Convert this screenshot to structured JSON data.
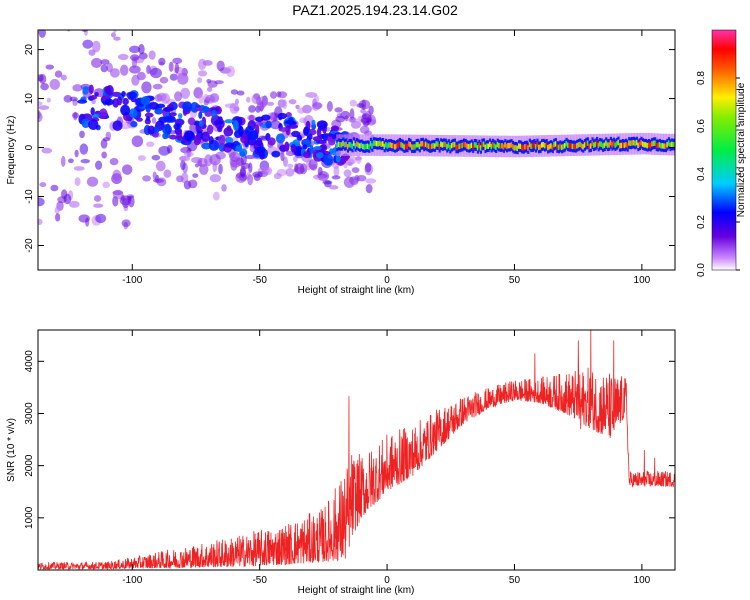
{
  "title": "PAZ1.2025.194.23.14.G02",
  "chart_data": [
    {
      "type": "heatmap",
      "title": "",
      "xlabel": "Height of straight line (km)",
      "ylabel": "Frequency (Hz)",
      "xlim": [
        -137,
        113
      ],
      "ylim": [
        -25,
        24
      ],
      "xticks": [
        -100,
        -50,
        0,
        50,
        100
      ],
      "yticks": [
        -20,
        -10,
        0,
        10,
        20
      ],
      "colorbar": {
        "label": "Normalized spectral amplitude",
        "range": [
          0,
          1
        ],
        "ticks": [
          "0.0",
          "0.2",
          "0.4",
          "0.6",
          "0.8"
        ],
        "colormap": "rainbow (white-violet-blue-cyan-green-yellow-red-magenta)"
      },
      "ridge_frequency_hz": [
        {
          "x": -130,
          "f": 8
        },
        {
          "x": -110,
          "f": 8
        },
        {
          "x": -100,
          "f": 7
        },
        {
          "x": -90,
          "f": 6
        },
        {
          "x": -80,
          "f": 5
        },
        {
          "x": -70,
          "f": 4
        },
        {
          "x": -60,
          "f": 3
        },
        {
          "x": -50,
          "f": 2
        },
        {
          "x": -40,
          "f": 3
        },
        {
          "x": -30,
          "f": 2
        },
        {
          "x": -20,
          "f": 0.5
        },
        {
          "x": 0,
          "f": 0.5
        },
        {
          "x": 50,
          "f": 0.2
        },
        {
          "x": 100,
          "f": 0.8
        },
        {
          "x": 110,
          "f": 0.6
        }
      ]
    },
    {
      "type": "line",
      "title": "",
      "xlabel": "Height of straight line (km)",
      "ylabel": "SNR (10 * v/v)",
      "xlim": [
        -137,
        113
      ],
      "ylim": [
        0,
        4600
      ],
      "xticks": [
        -100,
        -50,
        0,
        50,
        100
      ],
      "yticks": [
        1000,
        2000,
        3000,
        4000
      ],
      "color": "#ee2222",
      "envelope": [
        {
          "x": -137,
          "lo": 20,
          "hi": 150
        },
        {
          "x": -110,
          "lo": 20,
          "hi": 160
        },
        {
          "x": -100,
          "lo": 30,
          "hi": 250
        },
        {
          "x": -80,
          "lo": 40,
          "hi": 450
        },
        {
          "x": -60,
          "lo": 60,
          "hi": 650
        },
        {
          "x": -40,
          "lo": 100,
          "hi": 900
        },
        {
          "x": -25,
          "lo": 150,
          "hi": 1200
        },
        {
          "x": -16,
          "lo": 200,
          "hi": 2000
        },
        {
          "x": -14,
          "lo": 600,
          "hi": 2300
        },
        {
          "x": -10,
          "lo": 1000,
          "hi": 2200
        },
        {
          "x": 0,
          "lo": 1500,
          "hi": 2600
        },
        {
          "x": 10,
          "lo": 1800,
          "hi": 2800
        },
        {
          "x": 20,
          "lo": 2300,
          "hi": 3100
        },
        {
          "x": 30,
          "lo": 2800,
          "hi": 3350
        },
        {
          "x": 40,
          "lo": 3100,
          "hi": 3500
        },
        {
          "x": 50,
          "lo": 3250,
          "hi": 3650
        },
        {
          "x": 60,
          "lo": 3200,
          "hi": 3700
        },
        {
          "x": 70,
          "lo": 3000,
          "hi": 3800
        },
        {
          "x": 80,
          "lo": 2700,
          "hi": 3900
        },
        {
          "x": 88,
          "lo": 2500,
          "hi": 3800
        },
        {
          "x": 94,
          "lo": 3000,
          "hi": 3700
        },
        {
          "x": 95,
          "lo": 1600,
          "hi": 1900
        },
        {
          "x": 113,
          "lo": 1600,
          "hi": 1900
        }
      ],
      "spikes": [
        {
          "x": -15,
          "y": 3330
        },
        {
          "x": 58,
          "y": 4150
        },
        {
          "x": 75,
          "y": 4400
        },
        {
          "x": 76,
          "y": 2700
        },
        {
          "x": 80,
          "y": 4600
        },
        {
          "x": 86,
          "y": 2900
        },
        {
          "x": 89,
          "y": 4400
        },
        {
          "x": 101,
          "y": 2300
        },
        {
          "x": 105,
          "y": 2150
        }
      ]
    }
  ]
}
